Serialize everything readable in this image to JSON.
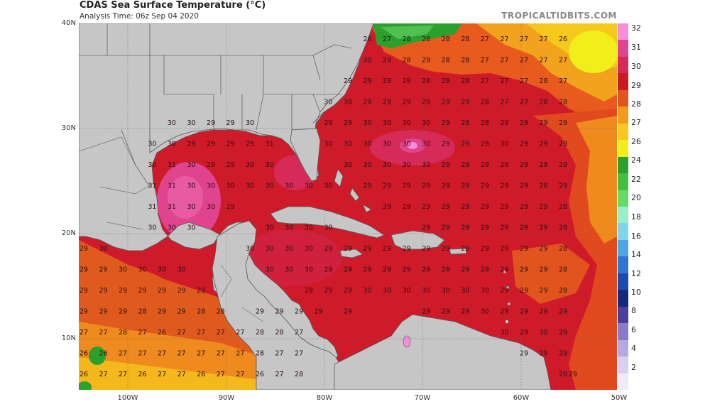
{
  "header": {
    "title": "CDAS Sea Surface Temperature (°C)",
    "subtitle": "Analysis Time: 06z Sep 04 2020",
    "credit": "TROPICALTIDBITS.COM"
  },
  "axes": {
    "lat_labels": [
      "40N",
      "30N",
      "20N",
      "10N"
    ],
    "lon_labels": [
      "100W",
      "90W",
      "80W",
      "70W",
      "60W",
      "50W"
    ]
  },
  "legend": {
    "labels": [
      "32",
      "31",
      "30",
      "29",
      "28",
      "27",
      "26",
      "24",
      "22",
      "20",
      "18",
      "16",
      "14",
      "12",
      "10",
      "8",
      "6",
      "4",
      "2"
    ],
    "colors": [
      "#f58fd9",
      "#e0448e",
      "#d62a58",
      "#cc1a22",
      "#e2541e",
      "#f19a1e",
      "#f7c81d",
      "#f2ee1c",
      "#2ca02c",
      "#40bf40",
      "#66d966",
      "#99eecc",
      "#80d4f0",
      "#4da6e8",
      "#2e75d4",
      "#1c4bb0",
      "#102a7d",
      "#4b3c9e",
      "#8a7bc9",
      "#b6a9e0",
      "#d8d0ee",
      "#eeeaf7"
    ]
  },
  "sst_values": [
    {
      "lat": 38.5,
      "vals": [
        [
          "26",
          -75.5
        ],
        [
          "27",
          -73.5
        ],
        [
          "28",
          -71.5
        ],
        [
          "28",
          -69.5
        ],
        [
          "28",
          -67.5
        ],
        [
          "28",
          -65.5
        ],
        [
          "27",
          -63.5
        ],
        [
          "27",
          -61.5
        ],
        [
          "27",
          -59.5
        ],
        [
          "27",
          -57.5
        ],
        [
          "26",
          -55.5
        ]
      ]
    },
    {
      "lat": 36.5,
      "vals": [
        [
          "30",
          -75.5
        ],
        [
          "29",
          -73.5
        ],
        [
          "28",
          -71.5
        ],
        [
          "29",
          -69.5
        ],
        [
          "28",
          -67.5
        ],
        [
          "28",
          -65.5
        ],
        [
          "27",
          -63.5
        ],
        [
          "27",
          -61.5
        ],
        [
          "27",
          -59.5
        ],
        [
          "27",
          -57.5
        ],
        [
          "27",
          -55.5
        ]
      ]
    },
    {
      "lat": 34.5,
      "vals": [
        [
          "29",
          -77.5
        ],
        [
          "29",
          -75.5
        ],
        [
          "28",
          -73.5
        ],
        [
          "29",
          -71.5
        ],
        [
          "28",
          -69.5
        ],
        [
          "28",
          -67.5
        ],
        [
          "28",
          -65.5
        ],
        [
          "27",
          -63.5
        ],
        [
          "27",
          -61.5
        ],
        [
          "27",
          -59.5
        ],
        [
          "28",
          -57.5
        ],
        [
          "27",
          -55.5
        ]
      ]
    },
    {
      "lat": 32.5,
      "vals": [
        [
          "30",
          -79.5
        ],
        [
          "30",
          -77.5
        ],
        [
          "29",
          -75.5
        ],
        [
          "29",
          -73.5
        ],
        [
          "29",
          -71.5
        ],
        [
          "29",
          -69.5
        ],
        [
          "29",
          -67.5
        ],
        [
          "29",
          -65.5
        ],
        [
          "28",
          -63.5
        ],
        [
          "27",
          -61.5
        ],
        [
          "27",
          -59.5
        ],
        [
          "28",
          -57.5
        ],
        [
          "28",
          -55.5
        ]
      ]
    },
    {
      "lat": 30.5,
      "vals": [
        [
          "30",
          -95.5
        ],
        [
          "30",
          -93.5
        ],
        [
          "29",
          -91.5
        ],
        [
          "29",
          -89.5
        ],
        [
          "30",
          -87.5
        ],
        [
          "29",
          -79.5
        ],
        [
          "29",
          -77.5
        ],
        [
          "30",
          -75.5
        ],
        [
          "30",
          -73.5
        ],
        [
          "30",
          -71.5
        ],
        [
          "30",
          -69.5
        ],
        [
          "29",
          -67.5
        ],
        [
          "28",
          -65.5
        ],
        [
          "28",
          -63.5
        ],
        [
          "29",
          -61.5
        ],
        [
          "29",
          -59.5
        ],
        [
          "29",
          -57.5
        ],
        [
          "29",
          -55.5
        ]
      ]
    },
    {
      "lat": 28.5,
      "vals": [
        [
          "30",
          -97.5
        ],
        [
          "30",
          -95.5
        ],
        [
          "29",
          -93.5
        ],
        [
          "29",
          -91.5
        ],
        [
          "29",
          -89.5
        ],
        [
          "29",
          -87.5
        ],
        [
          "31",
          -85.5
        ],
        [
          "30",
          -79.5
        ],
        [
          "30",
          -77.5
        ],
        [
          "30",
          -75.5
        ],
        [
          "30",
          -73.5
        ],
        [
          "30",
          -71.5
        ],
        [
          "30",
          -69.5
        ],
        [
          "29",
          -67.5
        ],
        [
          "29",
          -65.5
        ],
        [
          "29",
          -63.5
        ],
        [
          "30",
          -61.5
        ],
        [
          "29",
          -59.5
        ],
        [
          "29",
          -57.5
        ],
        [
          "29",
          -55.5
        ]
      ]
    },
    {
      "lat": 26.5,
      "vals": [
        [
          "30",
          -97.5
        ],
        [
          "31",
          -95.5
        ],
        [
          "30",
          -93.5
        ],
        [
          "29",
          -91.5
        ],
        [
          "29",
          -89.5
        ],
        [
          "30",
          -87.5
        ],
        [
          "30",
          -85.5
        ],
        [
          "30",
          -77.5
        ],
        [
          "30",
          -75.5
        ],
        [
          "30",
          -73.5
        ],
        [
          "30",
          -71.5
        ],
        [
          "30",
          -69.5
        ],
        [
          "29",
          -67.5
        ],
        [
          "29",
          -65.5
        ],
        [
          "29",
          -63.5
        ],
        [
          "29",
          -61.5
        ],
        [
          "29",
          -59.5
        ],
        [
          "29",
          -57.5
        ],
        [
          "29",
          -55.5
        ]
      ]
    },
    {
      "lat": 24.5,
      "vals": [
        [
          "31",
          -97.5
        ],
        [
          "31",
          -95.5
        ],
        [
          "30",
          -93.5
        ],
        [
          "30",
          -91.5
        ],
        [
          "30",
          -89.5
        ],
        [
          "30",
          -87.5
        ],
        [
          "30",
          -85.5
        ],
        [
          "30",
          -83.5
        ],
        [
          "30",
          -81.5
        ],
        [
          "30",
          -79.5
        ],
        [
          "29",
          -75.5
        ],
        [
          "29",
          -73.5
        ],
        [
          "29",
          -71.5
        ],
        [
          "29",
          -69.5
        ],
        [
          "29",
          -67.5
        ],
        [
          "29",
          -65.5
        ],
        [
          "29",
          -63.5
        ],
        [
          "29",
          -61.5
        ],
        [
          "29",
          -59.5
        ],
        [
          "28",
          -57.5
        ],
        [
          "29",
          -55.5
        ]
      ]
    },
    {
      "lat": 22.5,
      "vals": [
        [
          "31",
          -97.5
        ],
        [
          "31",
          -95.5
        ],
        [
          "30",
          -93.5
        ],
        [
          "30",
          -91.5
        ],
        [
          "29",
          -89.5
        ],
        [
          "29",
          -73.5
        ],
        [
          "29",
          -71.5
        ],
        [
          "29",
          -69.5
        ],
        [
          "29",
          -67.5
        ],
        [
          "29",
          -65.5
        ],
        [
          "29",
          -63.5
        ],
        [
          "29",
          -61.5
        ],
        [
          "29",
          -59.5
        ],
        [
          "29",
          -57.5
        ],
        [
          "28",
          -55.5
        ]
      ]
    },
    {
      "lat": 20.5,
      "vals": [
        [
          "30",
          -97.5
        ],
        [
          "30",
          -95.5
        ],
        [
          "30",
          -93.5
        ],
        [
          "30",
          -85.5
        ],
        [
          "30",
          -83.5
        ],
        [
          "30",
          -81.5
        ],
        [
          "30",
          -79.5
        ],
        [
          "29",
          -69.5
        ],
        [
          "29",
          -67.5
        ],
        [
          "29",
          -65.5
        ],
        [
          "29",
          -63.5
        ],
        [
          "29",
          -61.5
        ],
        [
          "29",
          -59.5
        ],
        [
          "29",
          -57.5
        ],
        [
          "28",
          -55.5
        ]
      ]
    },
    {
      "lat": 18.5,
      "vals": [
        [
          "29",
          -104.5
        ],
        [
          "30",
          -102.5
        ],
        [
          "30",
          -87.5
        ],
        [
          "30",
          -85.5
        ],
        [
          "30",
          -83.5
        ],
        [
          "30",
          -81.5
        ],
        [
          "29",
          -79.5
        ],
        [
          "29",
          -77.5
        ],
        [
          "29",
          -75.5
        ],
        [
          "29",
          -73.5
        ],
        [
          "29",
          -71.5
        ],
        [
          "29",
          -69.5
        ],
        [
          "29",
          -67.5
        ],
        [
          "29",
          -65.5
        ],
        [
          "29",
          -63.5
        ],
        [
          "29",
          -61.5
        ],
        [
          "29",
          -59.5
        ],
        [
          "29",
          -57.5
        ],
        [
          "28",
          -55.5
        ]
      ]
    },
    {
      "lat": 16.5,
      "vals": [
        [
          "29",
          -104.5
        ],
        [
          "29",
          -102.5
        ],
        [
          "30",
          -100.5
        ],
        [
          "30",
          -98.5
        ],
        [
          "30",
          -96.5
        ],
        [
          "30",
          -94.5
        ],
        [
          "30",
          -85.5
        ],
        [
          "30",
          -83.5
        ],
        [
          "30",
          -81.5
        ],
        [
          "29",
          -79.5
        ],
        [
          "29",
          -77.5
        ],
        [
          "29",
          -75.5
        ],
        [
          "29",
          -73.5
        ],
        [
          "29",
          -71.5
        ],
        [
          "29",
          -69.5
        ],
        [
          "29",
          -67.5
        ],
        [
          "29",
          -65.5
        ],
        [
          "29",
          -63.5
        ],
        [
          "29",
          -61.5
        ],
        [
          "29",
          -59.5
        ],
        [
          "29",
          -57.5
        ],
        [
          "28",
          -55.5
        ]
      ]
    },
    {
      "lat": 14.5,
      "vals": [
        [
          "29",
          -104.5
        ],
        [
          "29",
          -102.5
        ],
        [
          "29",
          -100.5
        ],
        [
          "29",
          -98.5
        ],
        [
          "29",
          -96.5
        ],
        [
          "29",
          -94.5
        ],
        [
          "29",
          -92.5
        ],
        [
          "29",
          -81.5
        ],
        [
          "29",
          -79.5
        ],
        [
          "29",
          -77.5
        ],
        [
          "30",
          -75.5
        ],
        [
          "30",
          -73.5
        ],
        [
          "30",
          -71.5
        ],
        [
          "30",
          -69.5
        ],
        [
          "30",
          -67.5
        ],
        [
          "30",
          -65.5
        ],
        [
          "30",
          -63.5
        ],
        [
          "29",
          -61.5
        ],
        [
          "29",
          -59.5
        ],
        [
          "29",
          -57.5
        ],
        [
          "28",
          -55.5
        ]
      ]
    },
    {
      "lat": 12.5,
      "vals": [
        [
          "29",
          -104.5
        ],
        [
          "29",
          -102.5
        ],
        [
          "29",
          -100.5
        ],
        [
          "28",
          -98.5
        ],
        [
          "29",
          -96.5
        ],
        [
          "29",
          -94.5
        ],
        [
          "28",
          -92.5
        ],
        [
          "28",
          -90.5
        ],
        [
          "29",
          -86.5
        ],
        [
          "29",
          -84.5
        ],
        [
          "29",
          -82.5
        ],
        [
          "29",
          -80.5
        ],
        [
          "29",
          -77.5
        ],
        [
          "29",
          -69.5
        ],
        [
          "29",
          -67.5
        ],
        [
          "29",
          -65.5
        ],
        [
          "30",
          -63.5
        ],
        [
          "29",
          -61.5
        ],
        [
          "29",
          -59.5
        ],
        [
          "29",
          -57.5
        ],
        [
          "29",
          -55.5
        ]
      ]
    },
    {
      "lat": 10.5,
      "vals": [
        [
          "27",
          -104.5
        ],
        [
          "27",
          -102.5
        ],
        [
          "28",
          -100.5
        ],
        [
          "27",
          -98.5
        ],
        [
          "26",
          -96.5
        ],
        [
          "27",
          -94.5
        ],
        [
          "27",
          -92.5
        ],
        [
          "27",
          -90.5
        ],
        [
          "27",
          -88.5
        ],
        [
          "28",
          -86.5
        ],
        [
          "28",
          -84.5
        ],
        [
          "27",
          -82.5
        ],
        [
          "30",
          -61.5
        ],
        [
          "29",
          -59.5
        ],
        [
          "30",
          -57.5
        ],
        [
          "29",
          -55.5
        ]
      ]
    },
    {
      "lat": 8.5,
      "vals": [
        [
          "26",
          -104.5
        ],
        [
          "26",
          -102.5
        ],
        [
          "27",
          -100.5
        ],
        [
          "27",
          -98.5
        ],
        [
          "27",
          -96.5
        ],
        [
          "27",
          -94.5
        ],
        [
          "27",
          -92.5
        ],
        [
          "27",
          -90.5
        ],
        [
          "27",
          -88.5
        ],
        [
          "28",
          -86.5
        ],
        [
          "27",
          -84.5
        ],
        [
          "27",
          -82.5
        ],
        [
          "29",
          -59.5
        ],
        [
          "29",
          -57.5
        ],
        [
          "29",
          -55.5
        ]
      ]
    },
    {
      "lat": 6.5,
      "vals": [
        [
          "26",
          -104.5
        ],
        [
          "27",
          -102.5
        ],
        [
          "27",
          -100.5
        ],
        [
          "26",
          -98.5
        ],
        [
          "27",
          -96.5
        ],
        [
          "27",
          -94.5
        ],
        [
          "26",
          -92.5
        ],
        [
          "27",
          -90.5
        ],
        [
          "27",
          -88.5
        ],
        [
          "26",
          -86.5
        ],
        [
          "27",
          -84.5
        ],
        [
          "28",
          -82.5
        ],
        [
          "28",
          -55.5
        ],
        [
          "29",
          -54.5
        ]
      ]
    }
  ]
}
